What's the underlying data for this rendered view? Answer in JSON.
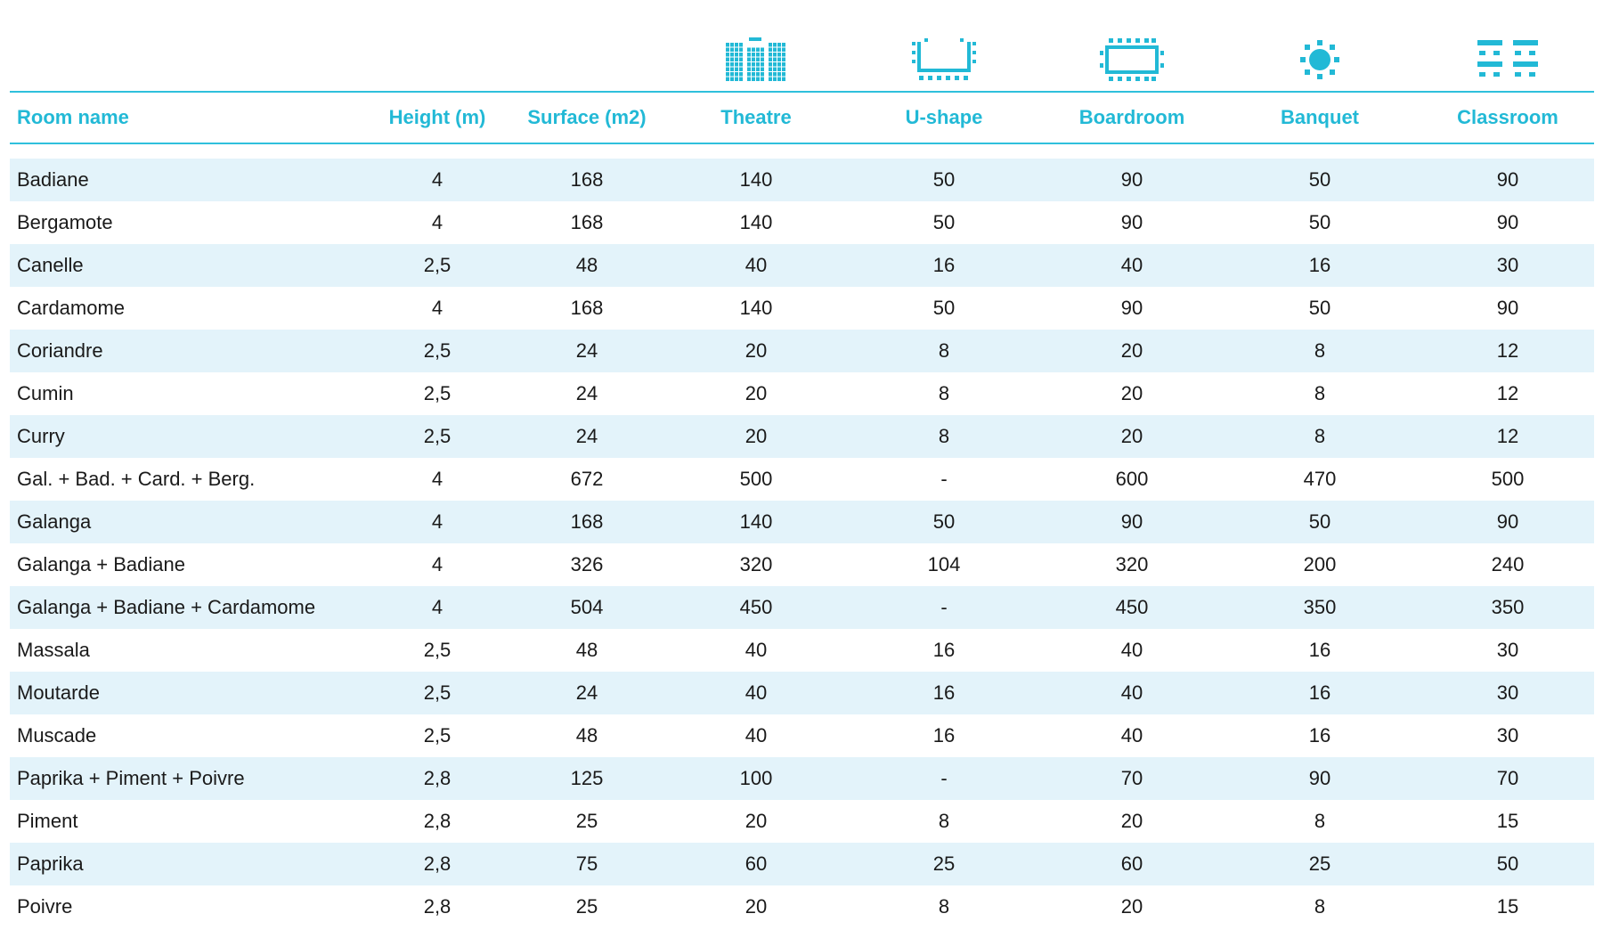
{
  "accent_color": "#22b9d6",
  "row_shade_color": "#e3f3fa",
  "icons": [
    "theatre-icon",
    "u-shape-icon",
    "boardroom-icon",
    "banquet-icon",
    "classroom-icon"
  ],
  "headers": {
    "room_name": "Room name",
    "height": "Height (m)",
    "surface": "Surface (m2)",
    "theatre": "Theatre",
    "ushape": "U-shape",
    "boardroom": "Boardroom",
    "banquet": "Banquet",
    "classroom": "Classroom"
  },
  "rows": [
    {
      "name": "Badiane",
      "height": "4",
      "surface": "168",
      "theatre": "140",
      "ushape": "50",
      "boardroom": "90",
      "banquet": "50",
      "classroom": "90"
    },
    {
      "name": "Bergamote",
      "height": "4",
      "surface": "168",
      "theatre": "140",
      "ushape": "50",
      "boardroom": "90",
      "banquet": "50",
      "classroom": "90"
    },
    {
      "name": "Canelle",
      "height": "2,5",
      "surface": "48",
      "theatre": "40",
      "ushape": "16",
      "boardroom": "40",
      "banquet": "16",
      "classroom": "30"
    },
    {
      "name": "Cardamome",
      "height": "4",
      "surface": "168",
      "theatre": "140",
      "ushape": "50",
      "boardroom": "90",
      "banquet": "50",
      "classroom": "90"
    },
    {
      "name": "Coriandre",
      "height": "2,5",
      "surface": "24",
      "theatre": "20",
      "ushape": "8",
      "boardroom": "20",
      "banquet": "8",
      "classroom": "12"
    },
    {
      "name": "Cumin",
      "height": "2,5",
      "surface": "24",
      "theatre": "20",
      "ushape": "8",
      "boardroom": "20",
      "banquet": "8",
      "classroom": "12"
    },
    {
      "name": "Curry",
      "height": "2,5",
      "surface": "24",
      "theatre": "20",
      "ushape": "8",
      "boardroom": "20",
      "banquet": "8",
      "classroom": "12"
    },
    {
      "name": "Gal. + Bad. + Card. + Berg.",
      "height": "4",
      "surface": "672",
      "theatre": "500",
      "ushape": "-",
      "boardroom": "600",
      "banquet": "470",
      "classroom": "500"
    },
    {
      "name": "Galanga",
      "height": "4",
      "surface": "168",
      "theatre": "140",
      "ushape": "50",
      "boardroom": "90",
      "banquet": "50",
      "classroom": "90"
    },
    {
      "name": "Galanga + Badiane",
      "height": "4",
      "surface": "326",
      "theatre": "320",
      "ushape": "104",
      "boardroom": "320",
      "banquet": "200",
      "classroom": "240"
    },
    {
      "name": "Galanga + Badiane + Cardamome",
      "height": "4",
      "surface": "504",
      "theatre": "450",
      "ushape": "-",
      "boardroom": "450",
      "banquet": "350",
      "classroom": "350"
    },
    {
      "name": "Massala",
      "height": "2,5",
      "surface": "48",
      "theatre": "40",
      "ushape": "16",
      "boardroom": "40",
      "banquet": "16",
      "classroom": "30"
    },
    {
      "name": "Moutarde",
      "height": "2,5",
      "surface": "24",
      "theatre": "40",
      "ushape": "16",
      "boardroom": "40",
      "banquet": "16",
      "classroom": "30"
    },
    {
      "name": "Muscade",
      "height": "2,5",
      "surface": "48",
      "theatre": "40",
      "ushape": "16",
      "boardroom": "40",
      "banquet": "16",
      "classroom": "30"
    },
    {
      "name": "Paprika + Piment + Poivre",
      "height": "2,8",
      "surface": "125",
      "theatre": "100",
      "ushape": "-",
      "boardroom": "70",
      "banquet": "90",
      "classroom": "70"
    },
    {
      "name": "Piment",
      "height": "2,8",
      "surface": "25",
      "theatre": "20",
      "ushape": "8",
      "boardroom": "20",
      "banquet": "8",
      "classroom": "15"
    },
    {
      "name": "Paprika",
      "height": "2,8",
      "surface": "75",
      "theatre": "60",
      "ushape": "25",
      "boardroom": "60",
      "banquet": "25",
      "classroom": "50"
    },
    {
      "name": "Poivre",
      "height": "2,8",
      "surface": "25",
      "theatre": "20",
      "ushape": "8",
      "boardroom": "20",
      "banquet": "8",
      "classroom": "15"
    }
  ]
}
